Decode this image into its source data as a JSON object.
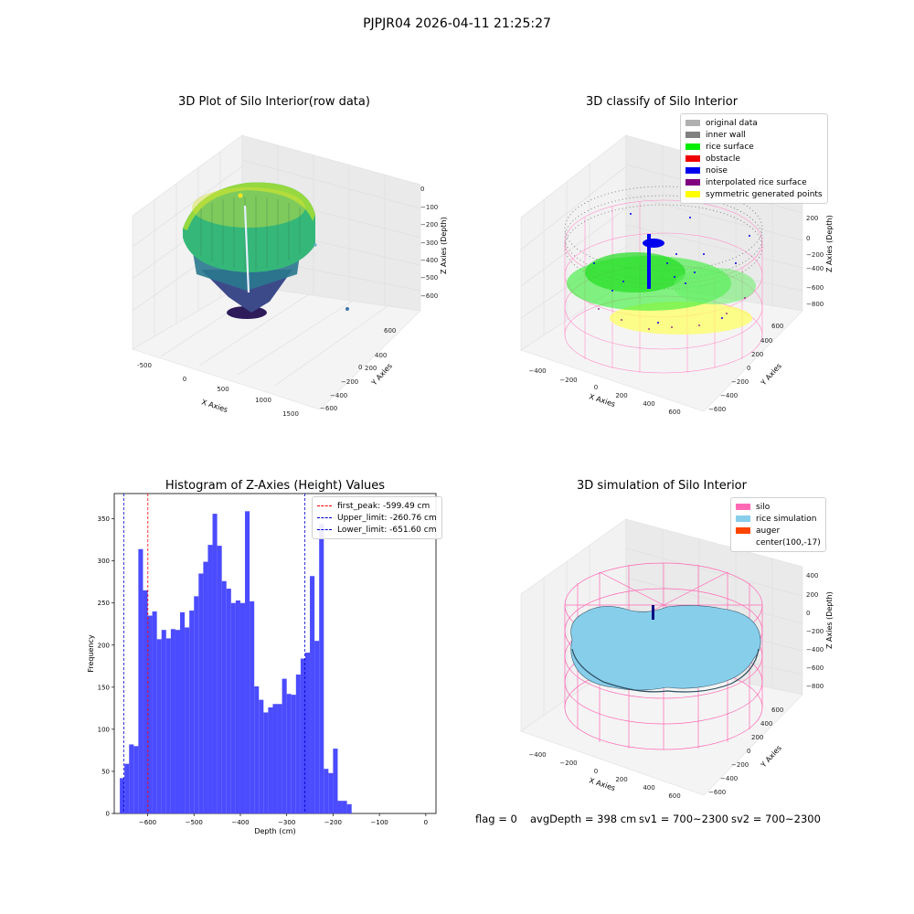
{
  "suptitle": "PJPJR04 2026-04-11 21:25:27",
  "plot1": {
    "title": "3D Plot of Silo Interior(row data)",
    "xlabel": "X Axies",
    "ylabel": "Y Axies",
    "zlabel": "Z Axies (Depth)",
    "xticks": [
      "-500",
      "0",
      "500",
      "1000",
      "1500"
    ],
    "yticks": [
      "600",
      "400",
      "200",
      "0",
      "−200",
      "−400",
      "−600"
    ],
    "zticks": [
      "0",
      "−100",
      "−200",
      "−300",
      "−400",
      "−500",
      "−600"
    ]
  },
  "plot2": {
    "title": "3D classify of Silo Interior",
    "xlabel": "X Axies",
    "ylabel": "Y Axies",
    "zlabel": "Z Axies (Depth)",
    "xticks": [
      "−400",
      "−200",
      "0",
      "200",
      "400",
      "600"
    ],
    "yticks": [
      "600",
      "400",
      "200",
      "0",
      "−200",
      "−400",
      "−600"
    ],
    "zticks": [
      "400",
      "200",
      "0",
      "−200",
      "−400",
      "−600",
      "−800"
    ],
    "legend": [
      {
        "label": "original data",
        "color": "#b0b0b0"
      },
      {
        "label": "inner wall",
        "color": "#808080"
      },
      {
        "label": "rice surface",
        "color": "#00ee00"
      },
      {
        "label": "obstacle",
        "color": "#ee0000"
      },
      {
        "label": "noise",
        "color": "#0000ee"
      },
      {
        "label": "interpolated rice surface",
        "color": "#800080"
      },
      {
        "label": "symmetric generated points",
        "color": "#ffff00"
      }
    ]
  },
  "plot4": {
    "title": "3D simulation of Silo Interior",
    "xlabel": "X Axies",
    "ylabel": "Y Axies",
    "zlabel": "Z Axies (Depth)",
    "xticks": [
      "−400",
      "−200",
      "0",
      "200",
      "400",
      "600"
    ],
    "yticks": [
      "600",
      "400",
      "200",
      "0",
      "−200",
      "−400",
      "−600"
    ],
    "zticks": [
      "400",
      "200",
      "0",
      "−200",
      "−400",
      "−600",
      "−800"
    ],
    "legend": [
      {
        "label": "silo",
        "color": "#ff69b4"
      },
      {
        "label": "rice simulation",
        "color": "#87ceeb"
      },
      {
        "label": "auger",
        "color": "#ff4500"
      },
      {
        "label": "center(100,-17)",
        "color": ""
      }
    ]
  },
  "status": {
    "flag": "flag = 0",
    "avg_depth": "avgDepth = 398 cm",
    "sv1": "sv1 = 700~2300",
    "sv2": "sv2 = 700~2300"
  },
  "chart_data": [
    {
      "type": "bar",
      "title": "Histogram of Z-Axies (Height) Values",
      "xlabel": "Depth (cm)",
      "ylabel": "Frequency",
      "bin_start": -660,
      "bin_width": 10,
      "values": [
        42,
        59,
        82,
        80,
        314,
        265,
        235,
        240,
        207,
        218,
        208,
        219,
        218,
        239,
        221,
        241,
        258,
        285,
        299,
        319,
        356,
        318,
        276,
        267,
        250,
        253,
        250,
        359,
        252,
        151,
        135,
        120,
        126,
        130,
        130,
        160,
        142,
        141,
        165,
        184,
        191,
        282,
        205,
        344,
        53,
        48,
        77,
        15,
        15,
        11
      ],
      "xlim": [
        -672,
        22
      ],
      "ylim": [
        0,
        380
      ],
      "xticks": [
        -600,
        -500,
        -400,
        -300,
        -200,
        -100,
        0
      ],
      "xtick_labels": [
        "−600",
        "−500",
        "−400",
        "−300",
        "−200",
        "−100",
        "0"
      ],
      "yticks": [
        0,
        50,
        100,
        150,
        200,
        250,
        300,
        350
      ],
      "ytick_labels": [
        "0",
        "50",
        "100",
        "150",
        "200",
        "250",
        "300",
        "350"
      ],
      "bar_color": "#4b4bff",
      "lines": [
        {
          "label": "first_peak: -599.49 cm",
          "x": -599.49,
          "color": "#ff0000"
        },
        {
          "label": "Upper_limit: -260.76 cm",
          "x": -260.76,
          "color": "#0000cc"
        },
        {
          "label": "Lower_limit: -651.60 cm",
          "x": -651.6,
          "color": "#0000cc"
        }
      ],
      "legend_position": "upper-right"
    }
  ]
}
